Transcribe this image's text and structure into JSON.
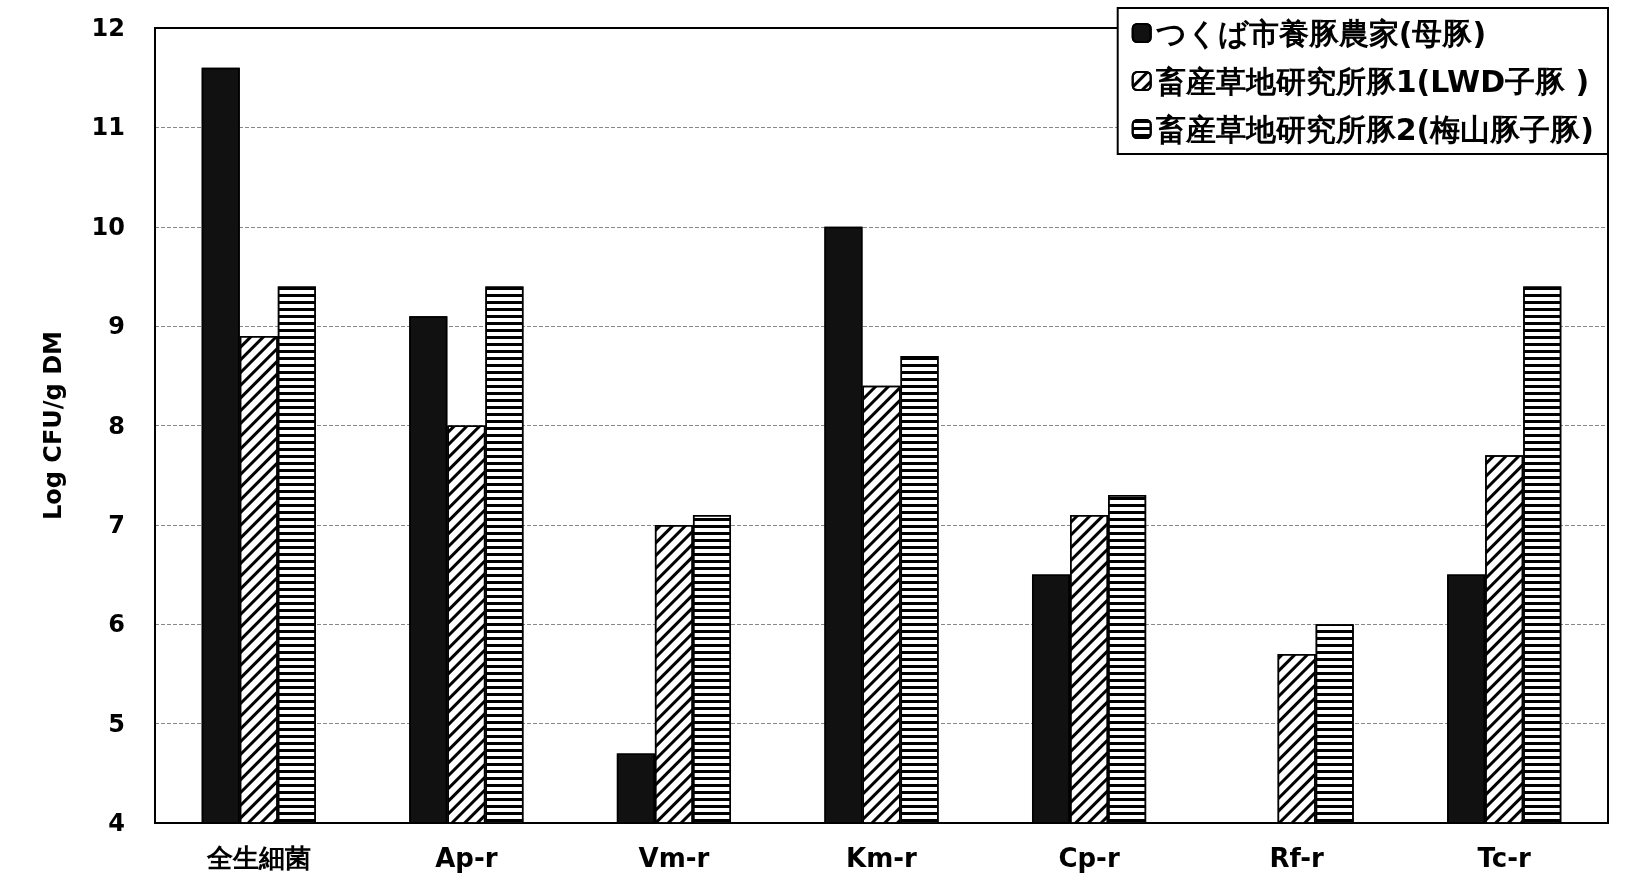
{
  "chart_data": {
    "type": "bar",
    "ylabel": "Log CFU/g DM",
    "categories": [
      "全生細菌",
      "Ap-r",
      "Vm-r",
      "Km-r",
      "Cp-r",
      "Rf-r",
      "Tc-r"
    ],
    "series": [
      {
        "name": "つくば市養豚農家(母豚)",
        "color": "#111111",
        "values": [
          11.6,
          9.1,
          4.7,
          10.0,
          6.5,
          null,
          6.5
        ]
      },
      {
        "name": "畜産草地研究所豚1(LWD子豚 )",
        "color": "#ffffff",
        "values": [
          8.9,
          8.0,
          7.0,
          8.4,
          7.1,
          5.7,
          7.7
        ]
      },
      {
        "name": "畜産草地研究所豚2(梅山豚子豚)",
        "color": "#ffffff",
        "values": [
          9.4,
          9.4,
          7.1,
          8.7,
          7.3,
          6.0,
          9.4
        ]
      }
    ],
    "ylim": [
      4,
      12
    ],
    "yticks": [
      4,
      5,
      6,
      7,
      8,
      9,
      10,
      11,
      12
    ],
    "grid": "y",
    "legend": "top right"
  }
}
